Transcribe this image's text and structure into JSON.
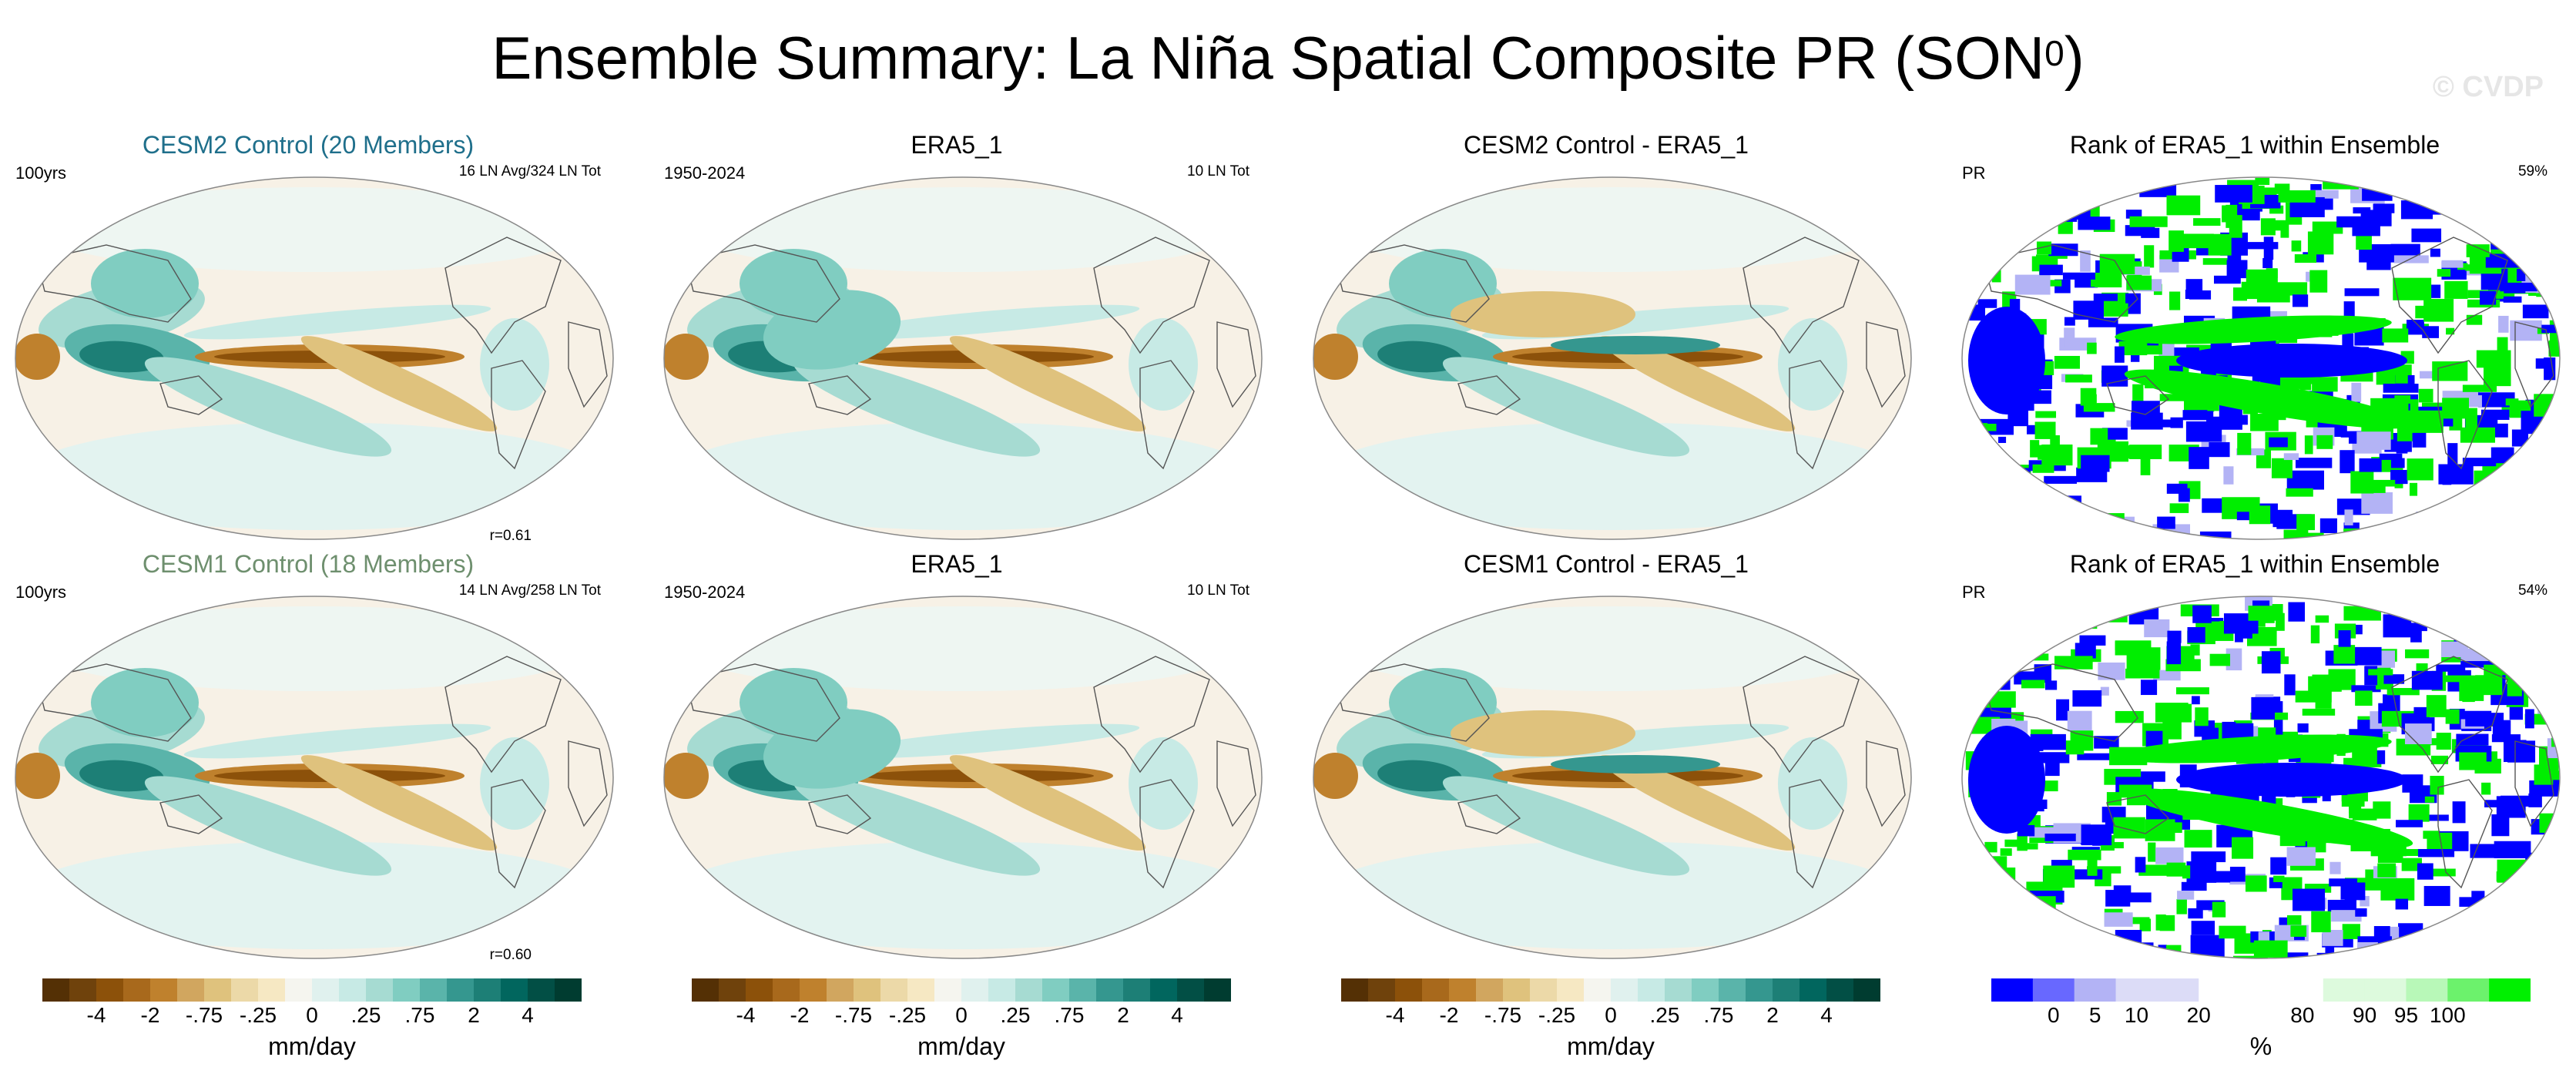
{
  "title": {
    "main": "Ensemble Summary: La Niña Spatial Composite PR (SON",
    "sup": "0",
    "close": ")"
  },
  "watermark": "© CVDP",
  "rows": [
    {
      "panels": [
        {
          "title": "CESM2 Control (20 Members)",
          "title_color": "#1f6f8b",
          "tl": "100yrs",
          "tr": "16 LN Avg/324 LN Tot",
          "br": "r=0.61",
          "kind": "model"
        },
        {
          "title": "ERA5_1",
          "title_color": "#000000",
          "tl": "1950-2024",
          "tr": "10 LN Tot",
          "br": "",
          "kind": "obs"
        },
        {
          "title": "CESM2 Control - ERA5_1",
          "title_color": "#000000",
          "tl": "",
          "tr": "",
          "br": "",
          "kind": "diff"
        },
        {
          "title": "Rank of ERA5_1 within Ensemble",
          "title_color": "#000000",
          "tl": "PR",
          "tr": "59%",
          "br": "",
          "kind": "rank"
        }
      ]
    },
    {
      "panels": [
        {
          "title": "CESM1 Control (18 Members)",
          "title_color": "#6e8f6e",
          "tl": "100yrs",
          "tr": "14 LN Avg/258 LN Tot",
          "br": "r=0.60",
          "kind": "model"
        },
        {
          "title": "ERA5_1",
          "title_color": "#000000",
          "tl": "1950-2024",
          "tr": "10 LN Tot",
          "br": "",
          "kind": "obs"
        },
        {
          "title": "CESM1 Control - ERA5_1",
          "title_color": "#000000",
          "tl": "",
          "tr": "",
          "br": "",
          "kind": "diff"
        },
        {
          "title": "Rank of ERA5_1 within Ensemble",
          "title_color": "#000000",
          "tl": "PR",
          "tr": "54%",
          "br": "",
          "kind": "rank"
        }
      ]
    }
  ],
  "colorbars": [
    {
      "colors": [
        "#543005",
        "#6f420c",
        "#8c510a",
        "#a8691c",
        "#bf812d",
        "#d1a65f",
        "#dfc27d",
        "#ecd9a8",
        "#f6e8c3",
        "#f5f5ef",
        "#e0f1ee",
        "#c7eae5",
        "#a6dbd2",
        "#80cdc1",
        "#5ab4aa",
        "#35978f",
        "#1d7f76",
        "#01665e",
        "#024f45",
        "#003c30"
      ],
      "ticks": [
        "-4",
        "-2",
        "-.75",
        "-.25",
        "0",
        ".25",
        ".75",
        "2",
        "4"
      ],
      "units": "mm/day"
    },
    {
      "colors": [
        "#543005",
        "#6f420c",
        "#8c510a",
        "#a8691c",
        "#bf812d",
        "#d1a65f",
        "#dfc27d",
        "#ecd9a8",
        "#f6e8c3",
        "#f5f5ef",
        "#e0f1ee",
        "#c7eae5",
        "#a6dbd2",
        "#80cdc1",
        "#5ab4aa",
        "#35978f",
        "#1d7f76",
        "#01665e",
        "#024f45",
        "#003c30"
      ],
      "ticks": [
        "-4",
        "-2",
        "-.75",
        "-.25",
        "0",
        ".25",
        ".75",
        "2",
        "4"
      ],
      "units": "mm/day"
    },
    {
      "colors": [
        "#543005",
        "#6f420c",
        "#8c510a",
        "#a8691c",
        "#bf812d",
        "#d1a65f",
        "#dfc27d",
        "#ecd9a8",
        "#f6e8c3",
        "#f5f5ef",
        "#e0f1ee",
        "#c7eae5",
        "#a6dbd2",
        "#80cdc1",
        "#5ab4aa",
        "#35978f",
        "#1d7f76",
        "#01665e",
        "#024f45",
        "#003c30"
      ],
      "ticks": [
        "-4",
        "-2",
        "-.75",
        "-.25",
        "0",
        ".25",
        ".75",
        "2",
        "4"
      ],
      "units": "mm/day"
    },
    {
      "colors": [
        "#0000ff",
        "#6868ff",
        "#b3b3f5",
        "#dcdcf7",
        "#dcdcf7",
        "#ffffff",
        "#ffffff",
        "#ffffff",
        "#ddfadd",
        "#ddfadd",
        "#b8f8b8",
        "#6cf26c",
        "#00f000"
      ],
      "ticks": [
        "0",
        "5",
        "10",
        "20",
        "80",
        "90",
        "95",
        "100"
      ],
      "units": "%"
    }
  ]
}
